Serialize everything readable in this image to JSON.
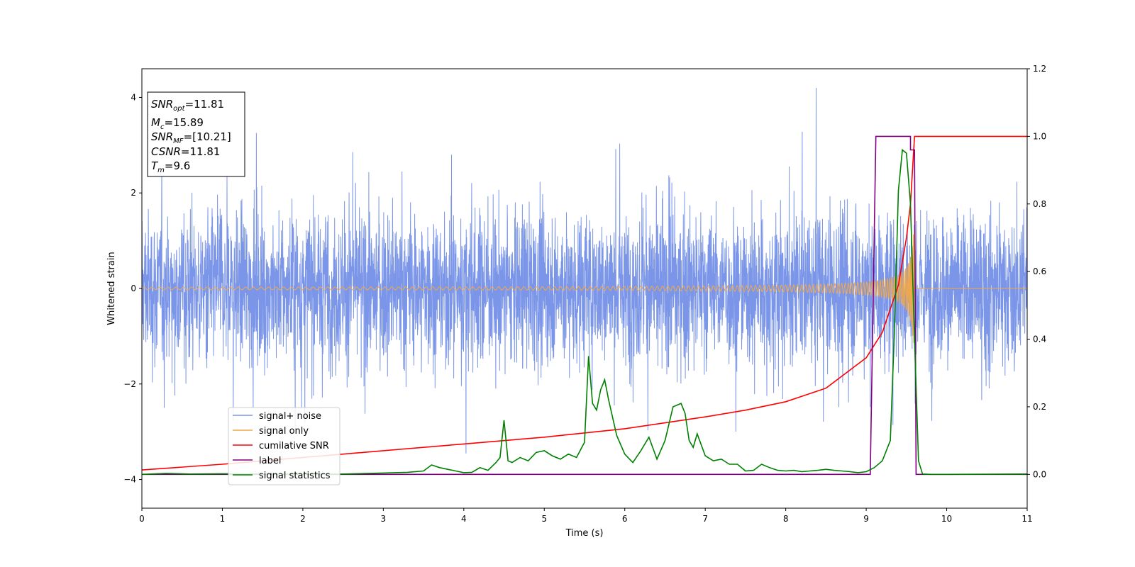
{
  "chart_data": {
    "type": "line",
    "xlabel": "Time (s)",
    "ylabel": "Whitened strain",
    "xlim": [
      0,
      11
    ],
    "ylim_left": [
      -4.6,
      4.6
    ],
    "ylim_right": [
      -0.1,
      1.2
    ],
    "x_ticks": [
      0,
      1,
      2,
      3,
      4,
      5,
      6,
      7,
      8,
      9,
      10,
      11
    ],
    "y_ticks_left": [
      -4,
      -2,
      0,
      2,
      4
    ],
    "y_ticks_right": [
      0.0,
      0.2,
      0.4,
      0.6,
      0.8,
      1.0,
      1.2
    ],
    "annotation": {
      "snr_opt": "=11.81",
      "mc": "=15.89",
      "snr_mf": "=[10.21]",
      "csnr": "=11.81",
      "tm": "=9.6"
    },
    "legend": [
      "signal+ noise",
      "signal only",
      "cumilative SNR",
      "label",
      "signal statistics"
    ],
    "colors": {
      "signal_noise": "#7b96e8",
      "signal_only": "#f0a84a",
      "cum_snr": "#ff0000",
      "label": "#800080",
      "stat": "#008000"
    },
    "series": {
      "signal_noise_amplitude": 2.3,
      "signal_only": {
        "amp_start": 0.03,
        "amp_peak": 1.2,
        "merger": 9.6
      },
      "cumulative_snr": {
        "x": [
          0,
          1,
          2,
          3,
          4,
          5,
          6,
          7,
          7.5,
          8,
          8.5,
          9,
          9.2,
          9.4,
          9.5,
          9.55,
          9.6,
          11
        ],
        "y": [
          0.013,
          0.03,
          0.05,
          0.07,
          0.09,
          0.11,
          0.135,
          0.17,
          0.19,
          0.215,
          0.255,
          0.345,
          0.42,
          0.56,
          0.7,
          0.8,
          1.0,
          1.0
        ]
      },
      "label": {
        "x": [
          0,
          9.05,
          9.12,
          9.55,
          9.55,
          9.6,
          9.62,
          11
        ],
        "y": [
          0,
          0,
          1,
          1,
          0.96,
          0.96,
          0,
          0
        ]
      },
      "signal_statistics": {
        "x": [
          0,
          0.3,
          0.6,
          1,
          1.5,
          2,
          2.5,
          3,
          3.3,
          3.5,
          3.6,
          3.7,
          3.8,
          3.9,
          4,
          4.1,
          4.2,
          4.3,
          4.4,
          4.45,
          4.5,
          4.55,
          4.6,
          4.7,
          4.8,
          4.9,
          5,
          5.1,
          5.2,
          5.3,
          5.4,
          5.5,
          5.55,
          5.6,
          5.65,
          5.7,
          5.75,
          5.8,
          5.9,
          6,
          6.1,
          6.2,
          6.3,
          6.4,
          6.5,
          6.6,
          6.7,
          6.75,
          6.8,
          6.85,
          6.9,
          7,
          7.1,
          7.2,
          7.3,
          7.4,
          7.5,
          7.6,
          7.7,
          7.8,
          7.9,
          8,
          8.1,
          8.2,
          8.3,
          8.4,
          8.5,
          8.6,
          8.7,
          8.8,
          8.9,
          9,
          9.1,
          9.2,
          9.3,
          9.35,
          9.4,
          9.45,
          9.5,
          9.55,
          9.6,
          9.65,
          9.7,
          9.8,
          10,
          11
        ],
        "y": [
          0.0,
          0.003,
          0.001,
          0.002,
          0.001,
          0.0,
          0.001,
          0.004,
          0.006,
          0.01,
          0.028,
          0.02,
          0.015,
          0.01,
          0.005,
          0.006,
          0.02,
          0.012,
          0.035,
          0.05,
          0.16,
          0.04,
          0.035,
          0.05,
          0.04,
          0.065,
          0.07,
          0.055,
          0.045,
          0.06,
          0.05,
          0.095,
          0.35,
          0.21,
          0.19,
          0.25,
          0.28,
          0.22,
          0.115,
          0.06,
          0.035,
          0.07,
          0.11,
          0.045,
          0.1,
          0.2,
          0.21,
          0.18,
          0.1,
          0.08,
          0.12,
          0.055,
          0.04,
          0.045,
          0.03,
          0.03,
          0.01,
          0.012,
          0.03,
          0.02,
          0.012,
          0.01,
          0.012,
          0.008,
          0.01,
          0.012,
          0.015,
          0.012,
          0.01,
          0.008,
          0.005,
          0.008,
          0.02,
          0.04,
          0.1,
          0.42,
          0.84,
          0.96,
          0.95,
          0.8,
          0.4,
          0.04,
          0.001,
          0.0,
          0.0,
          0.001
        ]
      }
    }
  }
}
